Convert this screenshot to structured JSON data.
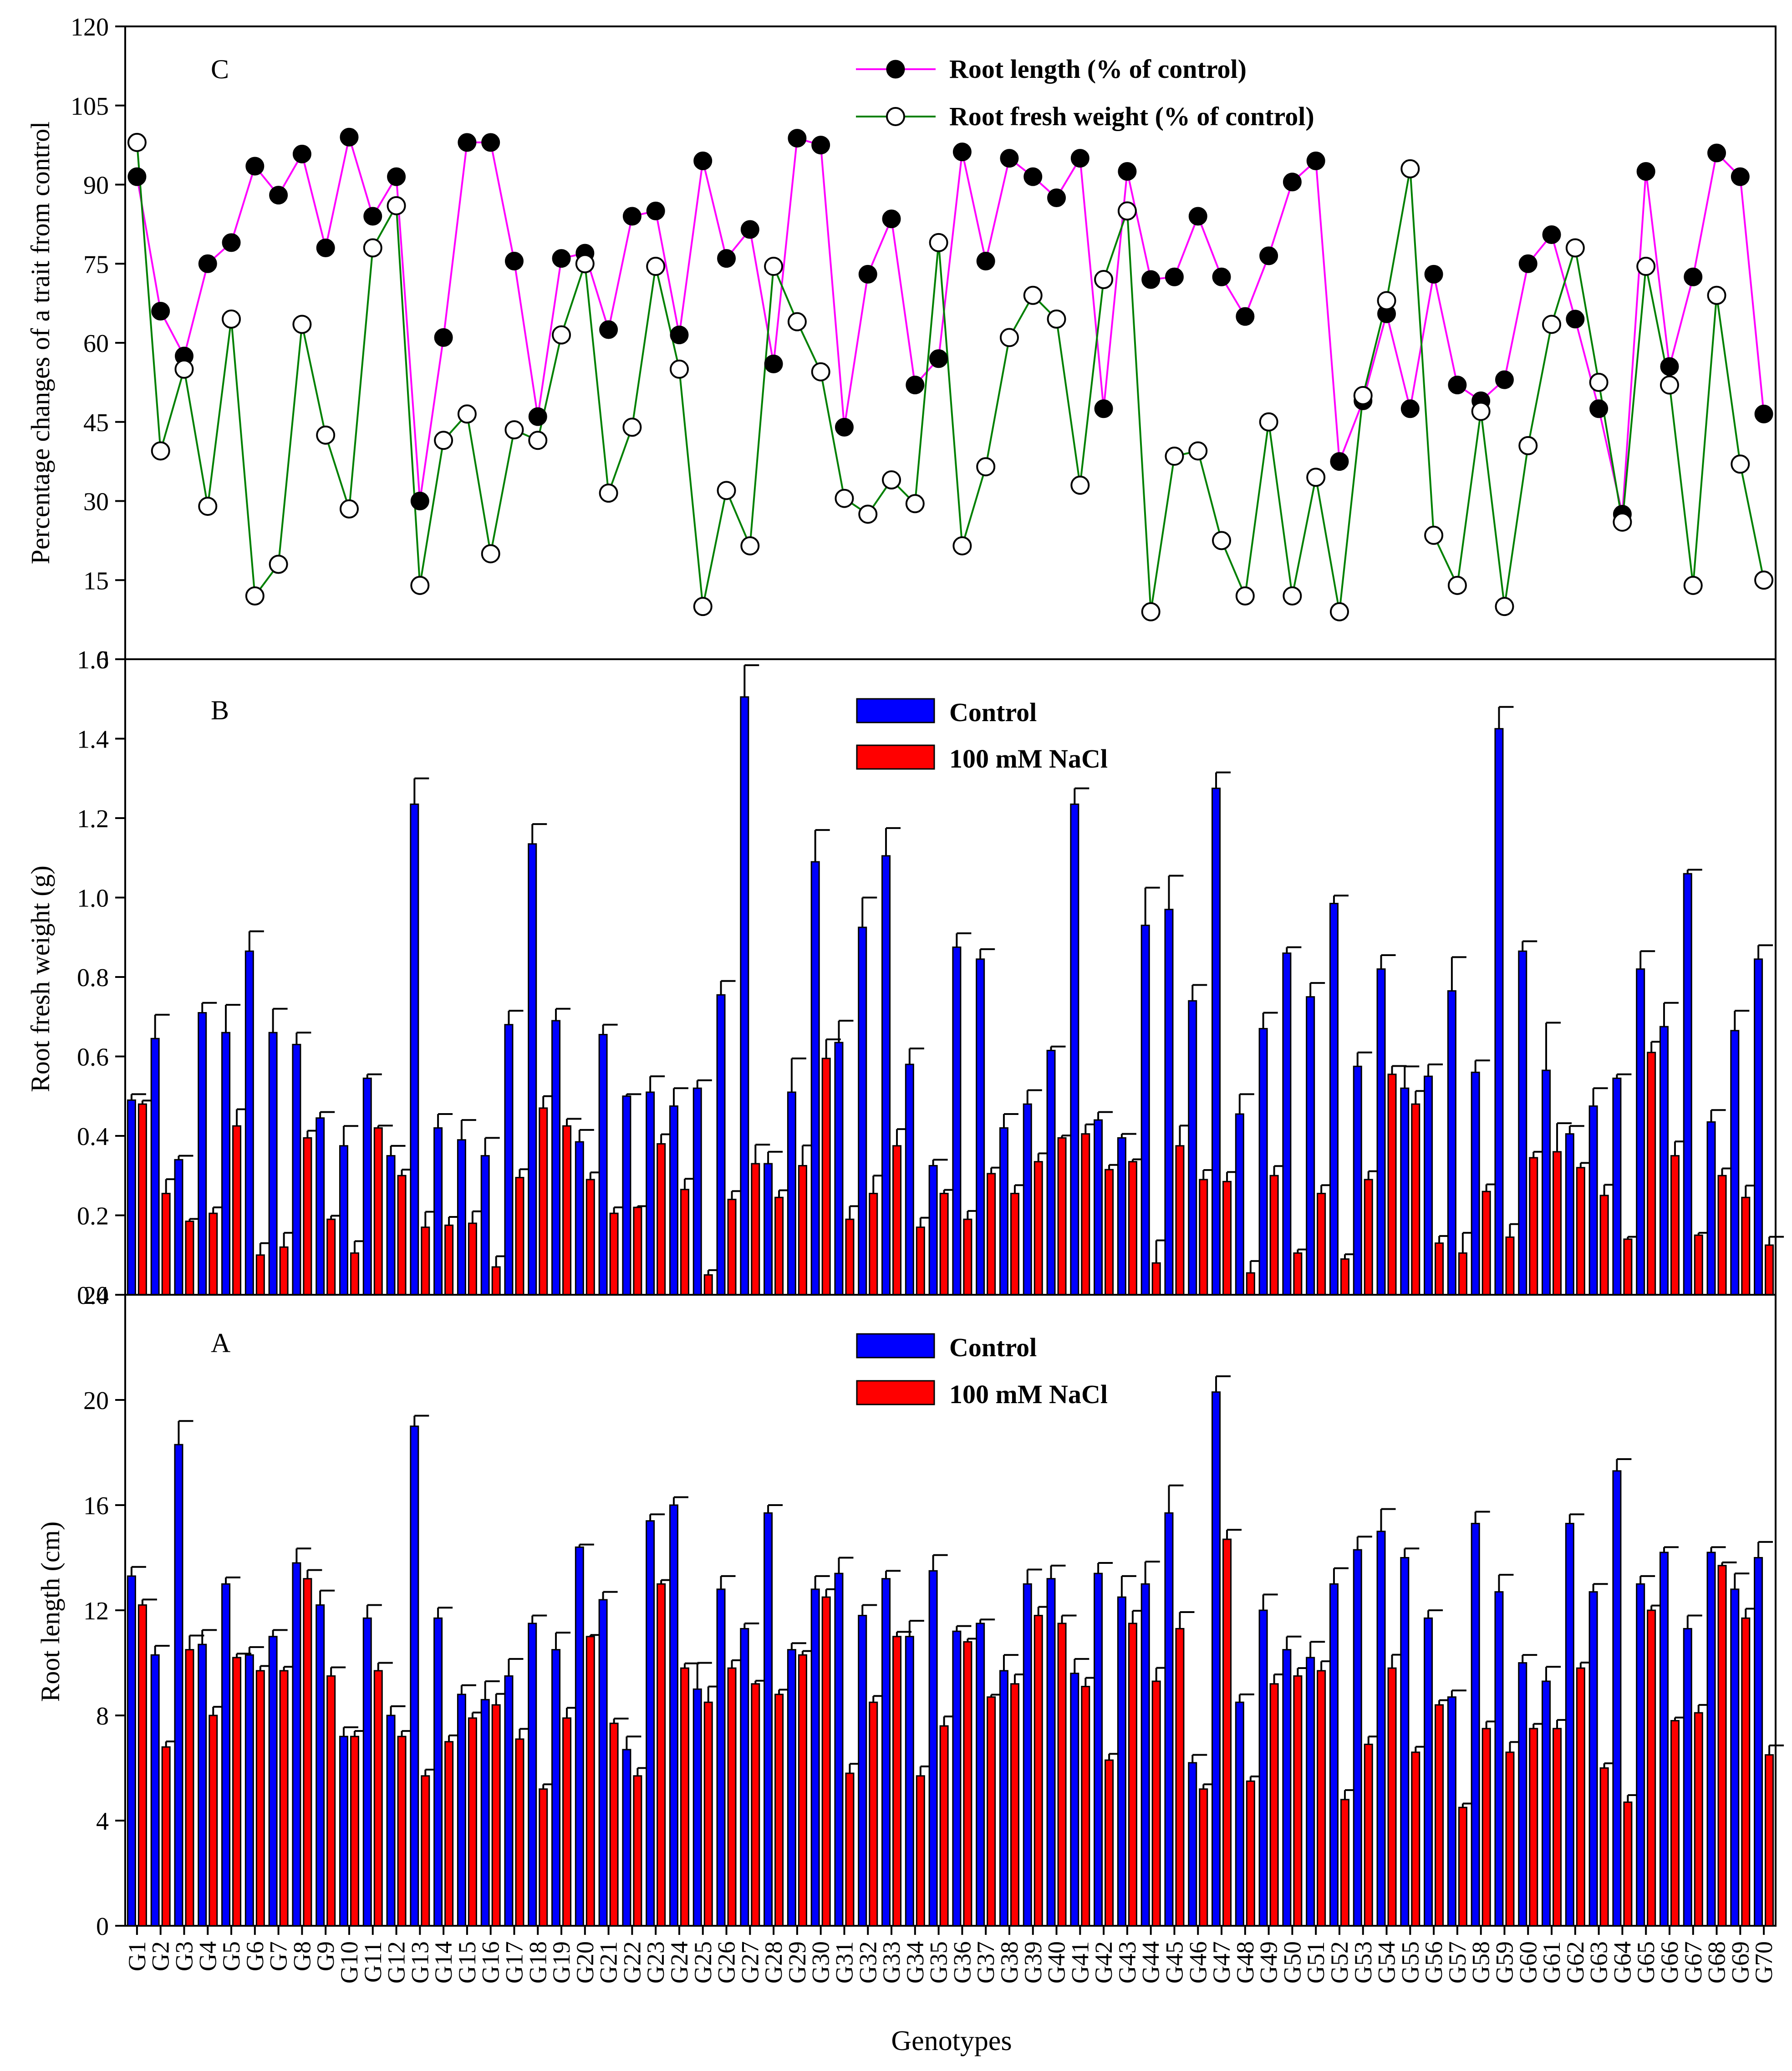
{
  "x_title": "Genotypes",
  "genotypes": [
    "G1",
    "G2",
    "G3",
    "G4",
    "G5",
    "G6",
    "G7",
    "G8",
    "G9",
    "G10",
    "G11",
    "G12",
    "G13",
    "G14",
    "G15",
    "G16",
    "G17",
    "G18",
    "G19",
    "G20",
    "G21",
    "G22",
    "G23",
    "G24",
    "G25",
    "G26",
    "G27",
    "G28",
    "G29",
    "G30",
    "G31",
    "G32",
    "G33",
    "G34",
    "G35",
    "G36",
    "G37",
    "G38",
    "G39",
    "G40",
    "G41",
    "G42",
    "G43",
    "G44",
    "G45",
    "G46",
    "G47",
    "G48",
    "G49",
    "G50",
    "G51",
    "G52",
    "G53",
    "G54",
    "G55",
    "G56",
    "G57",
    "G58",
    "G59",
    "G60",
    "G61",
    "G62",
    "G63",
    "G64",
    "G65",
    "G66",
    "G67",
    "G68",
    "G69",
    "G70"
  ],
  "colors": {
    "root_length_line": "#ff00ff",
    "fresh_weight_line": "#008000",
    "control_bar": "#0000ff",
    "nacl_bar": "#ff0000"
  },
  "chart_data": [
    {
      "panel": "C",
      "type": "line",
      "ylabel": "Percentage changes of a trait from control",
      "ylim": [
        0,
        120
      ],
      "yticks": [
        "0",
        "15",
        "30",
        "45",
        "60",
        "75",
        "90",
        "105",
        "120"
      ],
      "legend_position": "top-center",
      "series": [
        {
          "name": "Root length (% of control)",
          "marker": "filled-circle",
          "values": [
            91.5,
            66,
            57.5,
            75,
            79,
            93.5,
            88,
            95.8,
            78,
            99,
            84,
            91.5,
            30,
            61,
            98,
            98,
            75.5,
            46,
            76,
            77,
            62.5,
            84,
            85,
            61.5,
            94.5,
            76,
            81.5,
            56,
            98.8,
            97.5,
            44,
            73,
            83.5,
            52,
            57,
            96.2,
            75.5,
            95,
            91.5,
            87.5,
            95,
            47.5,
            92.5,
            72,
            72.5,
            84,
            72.5,
            65,
            76.5,
            90.5,
            94.5,
            37.5,
            49,
            65.5,
            47.5,
            73,
            52,
            49,
            53,
            75,
            80.5,
            64.5,
            47.5,
            27.5,
            92.5,
            55.5,
            72.5,
            96,
            91.5,
            46.5
          ]
        },
        {
          "name": "Root fresh weight (% of control)",
          "marker": "open-circle",
          "values": [
            98,
            39.5,
            55,
            29,
            64.5,
            12,
            18,
            63.5,
            42.5,
            28.5,
            78,
            86,
            14,
            41.5,
            46.5,
            20,
            43.5,
            41.5,
            61.5,
            75,
            31.5,
            44,
            74.5,
            55,
            10,
            32,
            21.5,
            74.5,
            64,
            54.5,
            30.5,
            27.5,
            34,
            29.5,
            79,
            21.5,
            36.5,
            61,
            69,
            64.5,
            33,
            72,
            85,
            9,
            38.5,
            39.5,
            22.5,
            12,
            45,
            12,
            34.5,
            9,
            50,
            68,
            93,
            23.5,
            14,
            47,
            10,
            40.5,
            63.5,
            78,
            52.5,
            26,
            74.5,
            52,
            14,
            69,
            37,
            15
          ]
        }
      ]
    },
    {
      "panel": "B",
      "type": "bar",
      "ylabel": "Root fresh weight (g)",
      "ylim": [
        0,
        1.6
      ],
      "yticks": [
        "0.0",
        "0.2",
        "0.4",
        "0.6",
        "0.8",
        "1.0",
        "1.2",
        "1.4",
        "1.6"
      ],
      "legend_position": "top-center",
      "series": [
        {
          "name": "Control",
          "values": [
            0.49,
            0.645,
            0.34,
            0.71,
            0.66,
            0.865,
            0.66,
            0.63,
            0.445,
            0.375,
            0.545,
            0.35,
            1.235,
            0.42,
            0.39,
            0.35,
            0.68,
            1.135,
            0.69,
            0.385,
            0.655,
            0.5,
            0.51,
            0.475,
            0.52,
            0.755,
            1.505,
            0.33,
            0.51,
            1.09,
            0.635,
            0.925,
            1.105,
            0.58,
            0.325,
            0.875,
            0.845,
            0.42,
            0.48,
            0.615,
            1.235,
            0.44,
            0.395,
            0.93,
            0.97,
            0.74,
            1.275,
            0.455,
            0.67,
            0.86,
            0.75,
            0.985,
            0.575,
            0.82,
            0.52,
            0.55,
            0.765,
            0.56,
            1.425,
            0.865,
            0.565,
            0.405,
            0.475,
            0.545,
            0.82,
            0.675,
            1.06,
            0.435,
            0.665,
            0.845
          ],
          "errors": [
            0.015,
            0.06,
            0.01,
            0.025,
            0.07,
            0.05,
            0.06,
            0.03,
            0.015,
            0.05,
            0.01,
            0.025,
            0.065,
            0.035,
            0.05,
            0.045,
            0.035,
            0.05,
            0.03,
            0.03,
            0.025,
            0.005,
            0.04,
            0.045,
            0.02,
            0.035,
            0.08,
            0.03,
            0.085,
            0.08,
            0.055,
            0.075,
            0.07,
            0.04,
            0.015,
            0.035,
            0.025,
            0.035,
            0.035,
            0.01,
            0.04,
            0.02,
            0.01,
            0.095,
            0.085,
            0.04,
            0.04,
            0.05,
            0.04,
            0.015,
            0.035,
            0.02,
            0.035,
            0.035,
            0.055,
            0.03,
            0.085,
            0.03,
            0.055,
            0.025,
            0.12,
            0.02,
            0.045,
            0.01,
            0.045,
            0.06,
            0.01,
            0.03,
            0.05,
            0.035
          ]
        },
        {
          "name": "100 mM NaCl",
          "values": [
            0.48,
            0.255,
            0.185,
            0.205,
            0.425,
            0.1,
            0.12,
            0.395,
            0.19,
            0.105,
            0.42,
            0.3,
            0.17,
            0.175,
            0.18,
            0.07,
            0.295,
            0.47,
            0.425,
            0.29,
            0.205,
            0.22,
            0.38,
            0.265,
            0.05,
            0.24,
            0.33,
            0.245,
            0.325,
            0.595,
            0.19,
            0.255,
            0.375,
            0.17,
            0.255,
            0.19,
            0.305,
            0.255,
            0.335,
            0.395,
            0.405,
            0.315,
            0.335,
            0.08,
            0.375,
            0.29,
            0.285,
            0.055,
            0.3,
            0.105,
            0.255,
            0.09,
            0.29,
            0.555,
            0.48,
            0.13,
            0.105,
            0.26,
            0.145,
            0.345,
            0.36,
            0.32,
            0.25,
            0.14,
            0.61,
            0.35,
            0.15,
            0.3,
            0.245,
            0.125
          ]
        }
      ]
    },
    {
      "panel": "A",
      "type": "bar",
      "ylabel": "Root length (cm)",
      "ylim": [
        0,
        24
      ],
      "yticks": [
        "0",
        "4",
        "8",
        "12",
        "16",
        "20",
        "24"
      ],
      "legend_position": "top-center",
      "series": [
        {
          "name": "Control",
          "values": [
            13.3,
            10.3,
            18.3,
            10.7,
            13,
            10.3,
            11,
            13.8,
            12.2,
            7.2,
            11.7,
            8,
            19,
            11.7,
            8.8,
            8.6,
            9.5,
            11.5,
            10.5,
            14.4,
            12.4,
            6.7,
            15.4,
            16,
            9,
            12.8,
            11.3,
            15.7,
            10.5,
            12.8,
            13.4,
            11.8,
            13.2,
            11,
            13.5,
            11.2,
            11.5,
            9.7,
            13,
            13.2,
            9.6,
            13.4,
            12.5,
            13,
            15.7,
            6.2,
            20.3,
            8.5,
            12,
            10.5,
            10.2,
            13,
            14.3,
            15,
            14,
            11.7,
            8.7,
            15.3,
            12.7,
            10,
            9.3,
            15.3,
            12.7,
            17.3,
            13,
            14.2,
            11.3,
            14.2,
            12.8,
            14
          ],
          "errors": [
            0.35,
            0.35,
            0.9,
            0.55,
            0.25,
            0.3,
            0.25,
            0.55,
            0.55,
            0.35,
            0.5,
            0.35,
            0.4,
            0.4,
            0.35,
            0.7,
            0.65,
            0.3,
            0.65,
            0.1,
            0.3,
            0.5,
            0.25,
            0.3,
            1,
            0.5,
            0.2,
            0.3,
            0.25,
            0.5,
            0.6,
            0.4,
            0.3,
            0.6,
            0.6,
            0.2,
            0.15,
            0.6,
            0.55,
            0.5,
            0.55,
            0.4,
            0.8,
            0.85,
            1.05,
            0.3,
            0.6,
            0.3,
            0.6,
            0.5,
            0.6,
            0.6,
            0.5,
            0.85,
            0.35,
            0.3,
            0.25,
            0.45,
            0.65,
            0.3,
            0.55,
            0.35,
            0.3,
            0.45,
            0.3,
            0.2,
            0.5,
            0.2,
            0.6,
            0.6
          ]
        },
        {
          "name": "100 mM NaCl",
          "values": [
            12.2,
            6.8,
            10.5,
            8,
            10.2,
            9.7,
            9.7,
            13.2,
            9.5,
            7.2,
            9.7,
            7.2,
            5.7,
            7,
            7.9,
            8.4,
            7.1,
            5.2,
            7.9,
            11,
            7.7,
            5.7,
            13,
            9.8,
            8.5,
            9.8,
            9.2,
            8.8,
            10.3,
            12.5,
            5.8,
            8.5,
            11,
            5.7,
            7.6,
            10.8,
            8.7,
            9.2,
            11.8,
            11.5,
            9.1,
            6.3,
            11.5,
            9.3,
            11.3,
            5.2,
            14.7,
            5.5,
            9.2,
            9.5,
            9.7,
            4.8,
            6.9,
            9.8,
            6.6,
            8.4,
            4.5,
            7.5,
            6.6,
            7.5,
            7.5,
            9.8,
            6,
            4.7,
            12,
            7.8,
            8.1,
            13.7,
            11.7,
            6.5
          ]
        }
      ]
    }
  ]
}
